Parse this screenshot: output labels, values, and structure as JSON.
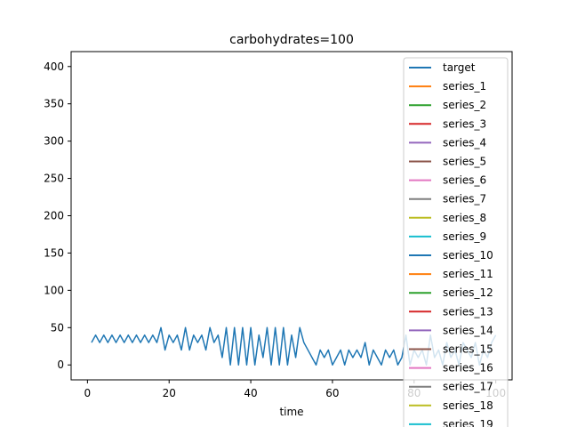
{
  "chart_data": {
    "type": "line",
    "title": "carbohydrates=100",
    "xlabel": "time",
    "ylabel": "",
    "xlim": [
      -4,
      104
    ],
    "ylim": [
      -20,
      420
    ],
    "xticks": [
      0,
      20,
      40,
      60,
      80,
      100
    ],
    "yticks": [
      0,
      50,
      100,
      150,
      200,
      250,
      300,
      350,
      400
    ],
    "legend_position": "top-right",
    "series": [
      {
        "name": "target",
        "color": "#1f77b4",
        "x": [
          1,
          2,
          3,
          4,
          5,
          6,
          7,
          8,
          9,
          10,
          11,
          12,
          13,
          14,
          15,
          16,
          17,
          18,
          19,
          20,
          21,
          22,
          23,
          24,
          25,
          26,
          27,
          28,
          29,
          30,
          31,
          32,
          33,
          34,
          35,
          36,
          37,
          38,
          39,
          40,
          41,
          42,
          43,
          44,
          45,
          46,
          47,
          48,
          49,
          50,
          51,
          52,
          53,
          54,
          55,
          56,
          57,
          58,
          59,
          60,
          61,
          62,
          63,
          64,
          65,
          66,
          67,
          68,
          69,
          70,
          71,
          72,
          73,
          74,
          75,
          76,
          77,
          78,
          79,
          80,
          81,
          82,
          83,
          84,
          85,
          86,
          87,
          88,
          89,
          90,
          91,
          92,
          93,
          94,
          95,
          96,
          97,
          98,
          99,
          100
        ],
        "y": [
          30,
          40,
          30,
          40,
          30,
          40,
          30,
          40,
          30,
          40,
          30,
          40,
          30,
          40,
          30,
          40,
          30,
          50,
          20,
          40,
          30,
          40,
          20,
          50,
          20,
          40,
          30,
          40,
          20,
          50,
          30,
          40,
          10,
          50,
          0,
          50,
          0,
          50,
          0,
          50,
          0,
          40,
          10,
          50,
          0,
          50,
          0,
          50,
          0,
          40,
          10,
          50,
          30,
          20,
          10,
          0,
          20,
          10,
          20,
          0,
          10,
          20,
          0,
          20,
          10,
          20,
          10,
          30,
          0,
          20,
          10,
          0,
          20,
          10,
          20,
          0,
          10,
          40,
          0,
          20,
          10,
          20,
          0,
          40,
          10,
          20,
          0,
          30,
          10,
          20,
          0,
          30,
          20,
          10,
          30,
          0,
          20,
          10,
          30,
          40
        ]
      },
      {
        "name": "series_1",
        "color": "#ff7f0e",
        "x": [],
        "y": []
      },
      {
        "name": "series_2",
        "color": "#2ca02c",
        "x": [],
        "y": []
      },
      {
        "name": "series_3",
        "color": "#d62728",
        "x": [],
        "y": []
      },
      {
        "name": "series_4",
        "color": "#9467bd",
        "x": [],
        "y": []
      },
      {
        "name": "series_5",
        "color": "#8c564b",
        "x": [],
        "y": []
      },
      {
        "name": "series_6",
        "color": "#e377c2",
        "x": [],
        "y": []
      },
      {
        "name": "series_7",
        "color": "#7f7f7f",
        "x": [],
        "y": []
      },
      {
        "name": "series_8",
        "color": "#bcbd22",
        "x": [],
        "y": []
      },
      {
        "name": "series_9",
        "color": "#17becf",
        "x": [],
        "y": []
      },
      {
        "name": "series_10",
        "color": "#1f77b4",
        "x": [],
        "y": []
      },
      {
        "name": "series_11",
        "color": "#ff7f0e",
        "x": [],
        "y": []
      },
      {
        "name": "series_12",
        "color": "#2ca02c",
        "x": [],
        "y": []
      },
      {
        "name": "series_13",
        "color": "#d62728",
        "x": [],
        "y": []
      },
      {
        "name": "series_14",
        "color": "#9467bd",
        "x": [],
        "y": []
      },
      {
        "name": "series_15",
        "color": "#8c564b",
        "x": [],
        "y": []
      },
      {
        "name": "series_16",
        "color": "#e377c2",
        "x": [],
        "y": []
      },
      {
        "name": "series_17",
        "color": "#7f7f7f",
        "x": [],
        "y": []
      },
      {
        "name": "series_18",
        "color": "#bcbd22",
        "x": [],
        "y": []
      },
      {
        "name": "series_19",
        "color": "#17becf",
        "x": [],
        "y": []
      }
    ]
  }
}
